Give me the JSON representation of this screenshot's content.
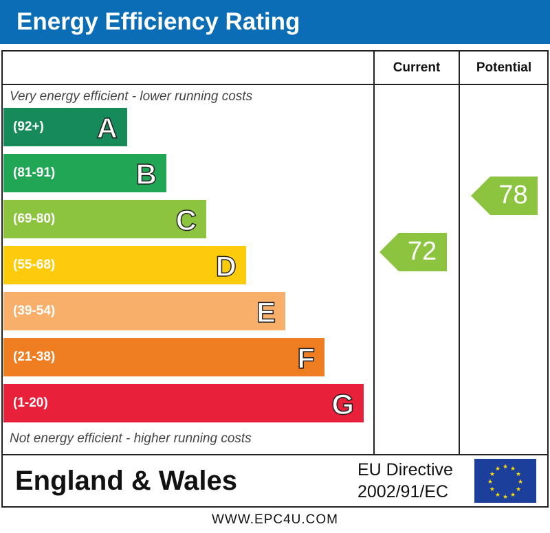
{
  "header": {
    "title": "Energy Efficiency Rating"
  },
  "columns": {
    "current": "Current",
    "potential": "Potential"
  },
  "notes": {
    "top": "Very energy efficient - lower running costs",
    "bottom": "Not energy efficient - higher running costs"
  },
  "footer": {
    "region": "England & Wales",
    "directive_line1": "EU Directive",
    "directive_line2": "2002/91/EC",
    "website": "WWW.EPC4U.COM"
  },
  "chart_data": {
    "type": "bar",
    "categories": [
      "A",
      "B",
      "C",
      "D",
      "E",
      "F",
      "G"
    ],
    "ranges": [
      "(92+)",
      "(81-91)",
      "(69-80)",
      "(55-68)",
      "(39-54)",
      "(21-38)",
      "(1-20)"
    ],
    "colors": [
      "#178a5a",
      "#20a654",
      "#8cc43f",
      "#fccb0b",
      "#f7af6a",
      "#ef7d22",
      "#e8203a"
    ],
    "current": {
      "value": 72,
      "band": "C",
      "color": "#8cc43f"
    },
    "potential": {
      "value": 78,
      "band": "C",
      "color": "#8cc43f"
    }
  }
}
